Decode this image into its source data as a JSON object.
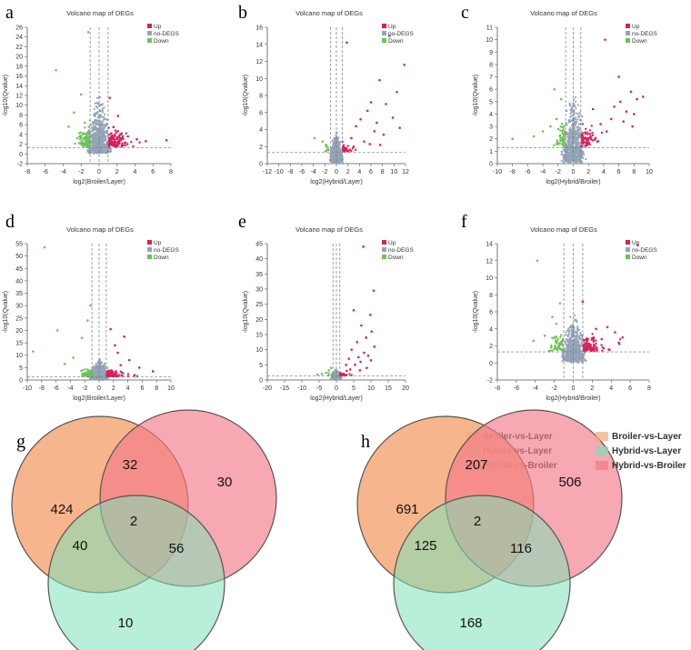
{
  "colors": {
    "up": "#dc1f5a",
    "nodeg": "#94a4b8",
    "down": "#6cc454",
    "venn_a": "#f5a878",
    "venn_b": "#7fe0b8",
    "venn_c": "#f47a88",
    "venn_stroke": "#555555"
  },
  "chart_data": [
    {
      "type": "scatter",
      "panel": "a",
      "title": "Volcano map of DEGs",
      "xlabel": "log2(Broiler/Layer)",
      "ylabel": "-log10(Qvalue)",
      "xlim": [
        -8,
        8
      ],
      "ylim": [
        -2,
        26
      ],
      "xticks": [
        "-8",
        "-6",
        "-4",
        "-2",
        "0",
        "2",
        "4",
        "6",
        "8"
      ],
      "yticks": [
        "-2",
        "0",
        "2",
        "4",
        "6",
        "8",
        "10",
        "12",
        "14",
        "16",
        "18",
        "20",
        "22",
        "24",
        "26"
      ],
      "vlines": [
        -1,
        0,
        1
      ],
      "hline": 1.3,
      "legend": [
        "Up",
        "no-DEGS",
        "Down"
      ],
      "spread": {
        "x": 1.6,
        "ymax": 13,
        "up_n": 130,
        "down_n": 90
      },
      "up_points": [
        [
          1.6,
          5.5
        ],
        [
          2.5,
          4.2
        ],
        [
          3.2,
          3.6
        ],
        [
          4.2,
          3.0
        ],
        [
          5.2,
          2.6
        ],
        [
          7.5,
          2.8
        ],
        [
          2.1,
          7.8
        ],
        [
          1.2,
          11.5
        ]
      ],
      "down_points": [
        [
          -4.8,
          17.2
        ],
        [
          -1.2,
          25.0
        ],
        [
          -2.8,
          8.5
        ],
        [
          -2.0,
          12.2
        ],
        [
          -1.6,
          6.4
        ],
        [
          -3.4,
          5.6
        ]
      ]
    },
    {
      "type": "scatter",
      "panel": "b",
      "title": "Volcano map of DEGs",
      "xlabel": "log2(Hybrid/Layer)",
      "ylabel": "-log10(Qvalue)",
      "xlim": [
        -12,
        12
      ],
      "ylim": [
        0,
        16
      ],
      "xticks": [
        "-12",
        "-10",
        "-8",
        "-6",
        "-4",
        "-2",
        "0",
        "2",
        "4",
        "6",
        "8",
        "10",
        "12"
      ],
      "yticks": [
        "0",
        "2",
        "4",
        "6",
        "8",
        "10",
        "12",
        "14",
        "16"
      ],
      "vlines": [
        -1,
        0,
        1
      ],
      "hline": 1.3,
      "legend": [
        "Up",
        "no-DEGS",
        "Down"
      ],
      "spread": {
        "x": 1.3,
        "ymax": 3.6,
        "up_n": 40,
        "down_n": 8
      },
      "up_points": [
        [
          9.2,
          15.0
        ],
        [
          11.8,
          11.6
        ],
        [
          7.5,
          9.8
        ],
        [
          10.5,
          8.4
        ],
        [
          6.0,
          7.2
        ],
        [
          8.6,
          7.0
        ],
        [
          5.4,
          6.2
        ],
        [
          9.8,
          5.4
        ],
        [
          4.2,
          5.2
        ],
        [
          7.0,
          4.8
        ],
        [
          11.0,
          4.2
        ],
        [
          3.4,
          4.4
        ],
        [
          6.6,
          3.8
        ],
        [
          8.2,
          3.4
        ],
        [
          1.8,
          14.2
        ],
        [
          2.6,
          3.0
        ],
        [
          4.8,
          2.6
        ],
        [
          5.8,
          2.3
        ],
        [
          7.6,
          2.2
        ],
        [
          3.0,
          2.0
        ]
      ],
      "down_points": [
        [
          -3.8,
          3.0
        ],
        [
          -2.4,
          2.6
        ],
        [
          -1.8,
          2.2
        ]
      ]
    },
    {
      "type": "scatter",
      "panel": "c",
      "title": "Volcano map of DEGs",
      "xlabel": "log2(Hybrid/Broiler)",
      "ylabel": "-log10(Qvalue)",
      "xlim": [
        -10,
        10
      ],
      "ylim": [
        0,
        11
      ],
      "xticks": [
        "-10",
        "-8",
        "-6",
        "-4",
        "-2",
        "0",
        "2",
        "4",
        "6",
        "8",
        "10"
      ],
      "yticks": [
        "0",
        "1",
        "2",
        "3",
        "4",
        "5",
        "6",
        "7",
        "8",
        "9",
        "10",
        "11"
      ],
      "vlines": [
        -1,
        0,
        1
      ],
      "hline": 1.3,
      "legend": [
        "Up",
        "no-DEGS",
        "Down"
      ],
      "spread": {
        "x": 1.8,
        "ymax": 6,
        "up_n": 70,
        "down_n": 40
      },
      "up_points": [
        [
          4.2,
          10.0
        ],
        [
          7.6,
          5.8
        ],
        [
          8.4,
          5.2
        ],
        [
          6.2,
          5.0
        ],
        [
          9.2,
          5.4
        ],
        [
          5.4,
          4.6
        ],
        [
          7.0,
          4.2
        ],
        [
          8.0,
          4.0
        ],
        [
          6.6,
          3.4
        ],
        [
          5.0,
          3.6
        ],
        [
          3.6,
          3.2
        ],
        [
          2.6,
          4.4
        ],
        [
          7.8,
          3.0
        ],
        [
          4.4,
          2.6
        ],
        [
          2.2,
          2.4
        ],
        [
          6.0,
          7.0
        ]
      ],
      "down_points": [
        [
          -8.0,
          2.0
        ],
        [
          -4.0,
          2.6
        ],
        [
          -3.0,
          3.0
        ],
        [
          -2.5,
          6.0
        ],
        [
          -1.6,
          5.2
        ],
        [
          -2.2,
          3.6
        ],
        [
          -5.2,
          2.2
        ]
      ]
    },
    {
      "type": "scatter",
      "panel": "d",
      "title": "Volcano map of DEGs",
      "xlabel": "log2(Broiler/Layer)",
      "ylabel": "-log10(Qvalue)",
      "xlim": [
        -10,
        10
      ],
      "ylim": [
        0,
        55
      ],
      "xticks": [
        "-10",
        "-8",
        "-6",
        "-4",
        "-2",
        "0",
        "2",
        "4",
        "6",
        "8",
        "10"
      ],
      "yticks": [
        "0",
        "5",
        "10",
        "15",
        "20",
        "25",
        "30",
        "35",
        "40",
        "45",
        "50",
        "55"
      ],
      "vlines": [
        -1,
        0,
        1
      ],
      "hline": 1.3,
      "legend": [
        "Up",
        "no-DEGS",
        "Down"
      ],
      "spread": {
        "x": 1.6,
        "ymax": 9,
        "up_n": 120,
        "down_n": 90
      },
      "up_points": [
        [
          3.5,
          17.5
        ],
        [
          2.2,
          14.0
        ],
        [
          2.6,
          11.0
        ],
        [
          4.2,
          8.0
        ],
        [
          5.6,
          5.0
        ],
        [
          7.5,
          3.5
        ],
        [
          1.6,
          20.5
        ],
        [
          3.0,
          6.0
        ]
      ],
      "down_points": [
        [
          -7.6,
          53.5
        ],
        [
          -9.2,
          11.5
        ],
        [
          -5.8,
          20.0
        ],
        [
          -1.6,
          24.0
        ],
        [
          -2.4,
          17.0
        ],
        [
          -3.6,
          9.0
        ],
        [
          -4.8,
          6.5
        ],
        [
          -1.2,
          30.0
        ]
      ]
    },
    {
      "type": "scatter",
      "panel": "e",
      "title": "Volcano map of DEGs",
      "xlabel": "log2(Hybrid/Layer)",
      "ylabel": "-log10(Qvalue)",
      "xlim": [
        -20,
        20
      ],
      "ylim": [
        0,
        45
      ],
      "xticks": [
        "-20",
        "-15",
        "-10",
        "-5",
        "0",
        "5",
        "10",
        "15",
        "20"
      ],
      "yticks": [
        "0",
        "5",
        "10",
        "15",
        "20",
        "25",
        "30",
        "35",
        "40",
        "45"
      ],
      "vlines": [
        -1,
        0,
        1
      ],
      "hline": 1.3,
      "legend": [
        "Up",
        "no-DEGS",
        "Down"
      ],
      "spread": {
        "x": 1.8,
        "ymax": 3.5,
        "up_n": 40,
        "down_n": 10
      },
      "up_points": [
        [
          7.8,
          44.0
        ],
        [
          10.8,
          29.5
        ],
        [
          5.0,
          23.0
        ],
        [
          9.8,
          21.5
        ],
        [
          7.2,
          18.0
        ],
        [
          10.2,
          16.0
        ],
        [
          8.6,
          14.0
        ],
        [
          6.0,
          12.5
        ],
        [
          11.0,
          11.0
        ],
        [
          4.4,
          10.0
        ],
        [
          8.0,
          9.0
        ],
        [
          9.2,
          8.0
        ],
        [
          6.4,
          7.5
        ],
        [
          3.6,
          7.0
        ],
        [
          7.0,
          6.0
        ],
        [
          10.0,
          6.5
        ],
        [
          5.4,
          5.0
        ],
        [
          2.8,
          5.0
        ],
        [
          8.8,
          4.0
        ],
        [
          4.0,
          3.5
        ],
        [
          6.8,
          3.2
        ],
        [
          3.0,
          3.0
        ]
      ],
      "down_points": [
        [
          -2.2,
          3.2
        ],
        [
          -3.0,
          2.4
        ],
        [
          -4.2,
          2.0
        ],
        [
          -1.6,
          4.0
        ],
        [
          -5.5,
          1.8
        ]
      ]
    },
    {
      "type": "scatter",
      "panel": "f",
      "title": "Volcano map of DEGs",
      "xlabel": "log2(Hybrid/Broiler)",
      "ylabel": "-log10(Qvalue)",
      "xlim": [
        -8,
        8
      ],
      "ylim": [
        -2,
        14
      ],
      "xticks": [
        "-8",
        "-6",
        "-4",
        "-2",
        "0",
        "2",
        "4",
        "6",
        "8"
      ],
      "yticks": [
        "-2",
        "0",
        "2",
        "4",
        "6",
        "8",
        "10",
        "12",
        "14"
      ],
      "vlines": [
        -1,
        0,
        1
      ],
      "hline": 1.3,
      "legend": [
        "Up",
        "no-DEGS",
        "Down"
      ],
      "spread": {
        "x": 1.5,
        "ymax": 6,
        "up_n": 100,
        "down_n": 50
      },
      "up_points": [
        [
          6.8,
          13.8
        ],
        [
          1.0,
          7.2
        ],
        [
          3.6,
          4.2
        ],
        [
          4.4,
          3.6
        ],
        [
          5.2,
          3.0
        ],
        [
          2.4,
          4.0
        ],
        [
          3.0,
          2.8
        ],
        [
          4.8,
          2.4
        ]
      ],
      "down_points": [
        [
          -3.8,
          12.0
        ],
        [
          -1.4,
          7.0
        ],
        [
          -2.2,
          5.4
        ],
        [
          -1.8,
          4.6
        ],
        [
          -3.0,
          3.2
        ],
        [
          -4.2,
          2.6
        ]
      ]
    },
    {
      "type": "venn",
      "panel": "g",
      "legend": [
        "Broiler-vs-Layer",
        "Hybrid-vs-Layer",
        "Hybrid-vs-Broiler"
      ],
      "regions": {
        "a_only": "424",
        "ac": "32",
        "c_only": "30",
        "abc": "2",
        "ab": "40",
        "bc": "56",
        "b_only": "10"
      }
    },
    {
      "type": "venn",
      "panel": "h",
      "legend": [
        "Broiler-vs-Layer",
        "Hybrid-vs-Layer",
        "Hybrid-vs-Broiler"
      ],
      "regions": {
        "a_only": "691",
        "ac": "207",
        "c_only": "506",
        "abc": "2",
        "ab": "125",
        "bc": "116",
        "b_only": "168"
      }
    }
  ]
}
